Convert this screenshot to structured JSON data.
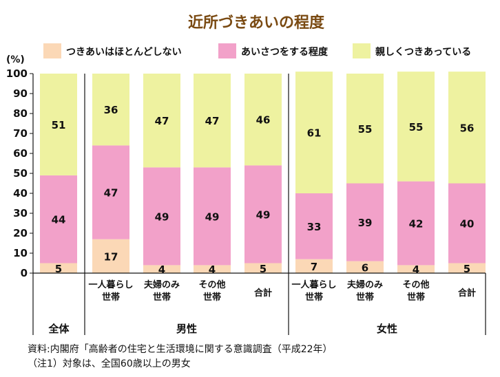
{
  "chart_data": {
    "type": "bar",
    "stacked": true,
    "title": "近所づきあいの程度",
    "y_unit": "(%)",
    "ylim": [
      0,
      100
    ],
    "yticks": [
      0,
      10,
      20,
      30,
      40,
      50,
      60,
      70,
      80,
      90,
      100
    ],
    "legend_position": "top",
    "series": [
      {
        "name": "つきあいはほとんどしない",
        "color": "#fbd8b6",
        "values": [
          5,
          17,
          4,
          4,
          5,
          7,
          6,
          4,
          5
        ]
      },
      {
        "name": "あいさつをする程度",
        "color": "#f2a1c9",
        "values": [
          44,
          47,
          49,
          49,
          49,
          33,
          39,
          42,
          40
        ]
      },
      {
        "name": "親しくつきあっている",
        "color": "#eef2a0",
        "values": [
          51,
          36,
          47,
          47,
          46,
          61,
          55,
          55,
          56
        ]
      }
    ],
    "categories": [
      [
        "",
        ""
      ],
      [
        "一人暮らし",
        "世帯"
      ],
      [
        "夫婦のみ",
        "世帯"
      ],
      [
        "その他",
        "世帯"
      ],
      [
        "合計",
        ""
      ],
      [
        "一人暮らし",
        "世帯"
      ],
      [
        "夫婦のみ",
        "世帯"
      ],
      [
        "その他",
        "世帯"
      ],
      [
        "合計",
        ""
      ]
    ],
    "groups": [
      {
        "name": "全体",
        "start": 0,
        "end": 0
      },
      {
        "name": "男性",
        "start": 1,
        "end": 4
      },
      {
        "name": "女性",
        "start": 5,
        "end": 8
      }
    ]
  },
  "notes": {
    "source": "資料:内閣府「高齢者の住宅と生活環境に関する意識調査（平成22年）",
    "note1": "（注1）対象は、全国60歳以上の男女"
  }
}
